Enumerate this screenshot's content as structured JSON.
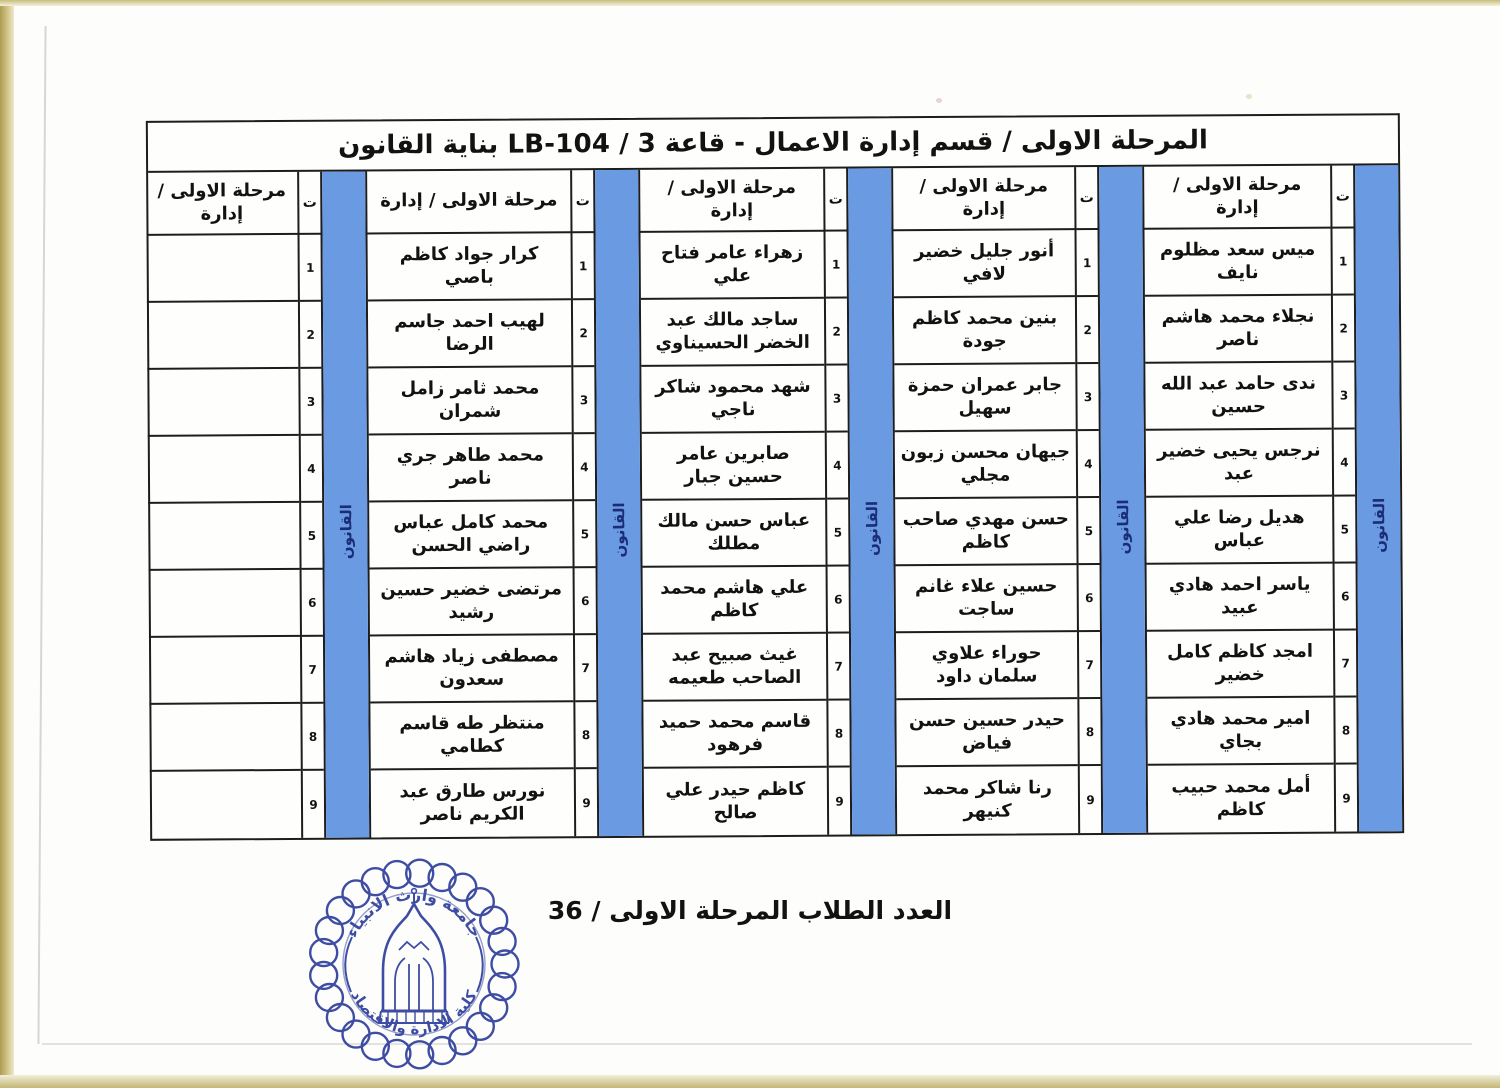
{
  "page": {
    "title": "المرحلة الاولى  / قسم إدارة الاعمال - قاعة 3 / LB-104 بناية القانون",
    "footer_total": "العدد الطلاب المرحلة الاولى / 36"
  },
  "table": {
    "col_header": "مرحلة الاولى / إدارة",
    "seq_header": "ت",
    "stripe_label": "القانون",
    "row_numbers": [
      "1",
      "2",
      "3",
      "4",
      "5",
      "6",
      "7",
      "8",
      "9"
    ],
    "groups": [
      {
        "names": [
          "ميس سعد مظلوم نايف",
          "نجلاء محمد هاشم ناصر",
          "ندى حامد عبد الله حسين",
          "نرجس يحيى خضير عبد",
          "هديل رضا علي عباس",
          "ياسر احمد هادي عبيد",
          "امجد كاظم كامل خضير",
          "امير محمد هادي بجاي",
          "أمل محمد حبيب كاظم"
        ]
      },
      {
        "names": [
          "أنور جليل خضير لافي",
          "بنين محمد كاظم جودة",
          "جابر عمران حمزة سهيل",
          "جيهان محسن زبون مجلي",
          "حسن مهدي صاحب كاظم",
          "حسين علاء غانم ساجت",
          "حوراء علاوي سلمان داود",
          "حيدر حسين حسن فياض",
          "رنا شاكر محمد كنيهر"
        ]
      },
      {
        "names": [
          "زهراء عامر فتاح علي",
          "ساجد مالك عبد الخضر الحسيناوي",
          "شهد محمود شاكر ناجي",
          "صابرين عامر حسين جبار",
          "عباس حسن مالك مطلك",
          "علي هاشم محمد كاظم",
          "غيث صبيح عبد الصاحب طعيمه",
          "قاسم محمد حميد فرهود",
          "كاظم حيدر علي صالح"
        ]
      },
      {
        "names": [
          "كرار جواد كاظم باصي",
          "لهيب احمد جاسم الرضا",
          "محمد ثامر زامل شمران",
          "محمد طاهر جري ناصر",
          "محمد كامل عباس راضي الحسن",
          "مرتضى خضير حسين رشيد",
          "مصطفى زياد هاشم سعدون",
          "منتظر طه قاسم كطامي",
          "نورس طارق عبد الكريم ناصر"
        ]
      },
      {
        "names": [
          "",
          "",
          "",
          "",
          "",
          "",
          "",
          "",
          ""
        ]
      }
    ]
  },
  "stamp": {
    "top_text": "جامعة وارث الانبياء",
    "bottom_text": "كلية الادارة والاقتصاد"
  },
  "colors": {
    "stripe_blue": "#6a9be2",
    "stripe_text": "#1b2d78",
    "stamp_ink": "#2e3f9c",
    "table_border": "#1d1d1d"
  }
}
